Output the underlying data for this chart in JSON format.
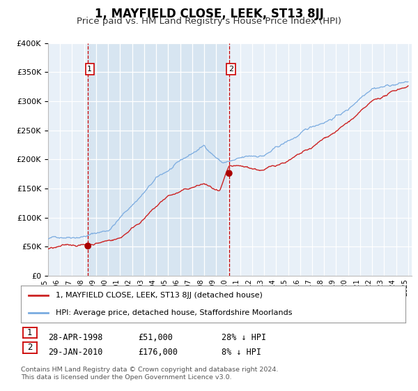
{
  "title": "1, MAYFIELD CLOSE, LEEK, ST13 8JJ",
  "subtitle": "Price paid vs. HM Land Registry's House Price Index (HPI)",
  "title_fontsize": 12,
  "subtitle_fontsize": 9.5,
  "background_color": "#ffffff",
  "plot_bg_color": "#e8f0f8",
  "grid_color": "#ffffff",
  "ylim": [
    0,
    400000
  ],
  "yticks": [
    0,
    50000,
    100000,
    150000,
    200000,
    250000,
    300000,
    350000,
    400000
  ],
  "ytick_labels": [
    "£0",
    "£50K",
    "£100K",
    "£150K",
    "£200K",
    "£250K",
    "£300K",
    "£350K",
    "£400K"
  ],
  "xtick_years": [
    "1995",
    "1996",
    "1997",
    "1998",
    "1999",
    "2000",
    "2001",
    "2002",
    "2003",
    "2004",
    "2005",
    "2006",
    "2007",
    "2008",
    "2009",
    "2010",
    "2011",
    "2012",
    "2013",
    "2014",
    "2015",
    "2016",
    "2017",
    "2018",
    "2019",
    "2020",
    "2021",
    "2022",
    "2023",
    "2024",
    "2025"
  ],
  "sale1_date": 1998.32,
  "sale1_price": 51000,
  "sale1_label": "1",
  "sale2_date": 2010.08,
  "sale2_price": 176000,
  "sale2_label": "2",
  "vline_color": "#cc0000",
  "shade_color": "#d4e4f0",
  "red_line_color": "#cc2222",
  "blue_line_color": "#7aabe0",
  "sale_dot_color": "#aa0000",
  "sale_dot_size": 50,
  "legend_red_label": "1, MAYFIELD CLOSE, LEEK, ST13 8JJ (detached house)",
  "legend_blue_label": "HPI: Average price, detached house, Staffordshire Moorlands",
  "annotation1_date": "28-APR-1998",
  "annotation1_price": "£51,000",
  "annotation1_hpi": "28% ↓ HPI",
  "annotation2_date": "29-JAN-2010",
  "annotation2_price": "£176,000",
  "annotation2_hpi": "8% ↓ HPI",
  "footer_line1": "Contains HM Land Registry data © Crown copyright and database right 2024.",
  "footer_line2": "This data is licensed under the Open Government Licence v3.0."
}
